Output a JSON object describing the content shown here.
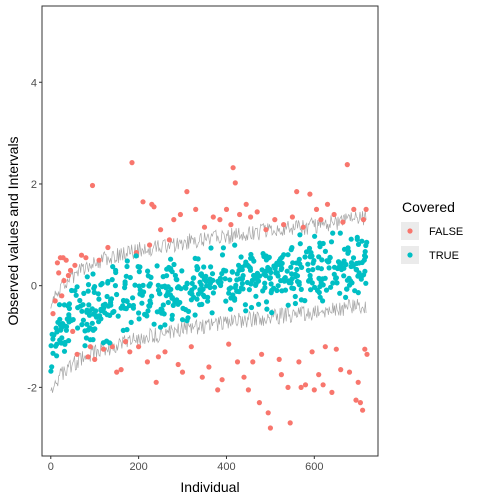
{
  "chart_data": {
    "type": "scatter",
    "xlabel": "Individual",
    "ylabel": "Observed values and Intervals",
    "xlim": [
      -20,
      745
    ],
    "ylim": [
      -3.35,
      5.5
    ],
    "x_ticks": [
      0,
      200,
      400,
      600
    ],
    "y_ticks": [
      -2,
      0,
      2,
      4
    ],
    "grid": false,
    "n_individuals": 720,
    "interval": {
      "color": "#a6a6a6",
      "lower_anchors": [
        [
          0,
          -2.0
        ],
        [
          40,
          -1.6
        ],
        [
          100,
          -1.3
        ],
        [
          200,
          -1.05
        ],
        [
          300,
          -0.85
        ],
        [
          400,
          -0.72
        ],
        [
          500,
          -0.62
        ],
        [
          600,
          -0.52
        ],
        [
          720,
          -0.38
        ]
      ],
      "upper_anchors": [
        [
          0,
          -0.35
        ],
        [
          40,
          0.15
        ],
        [
          100,
          0.45
        ],
        [
          200,
          0.7
        ],
        [
          300,
          0.85
        ],
        [
          400,
          0.97
        ],
        [
          500,
          1.08
        ],
        [
          600,
          1.18
        ],
        [
          720,
          1.35
        ]
      ]
    },
    "legend": {
      "title": "Covered",
      "position": "right",
      "entries": [
        {
          "label": "FALSE",
          "color": "#f8766d"
        },
        {
          "label": "TRUE",
          "color": "#00bfc4"
        }
      ]
    },
    "series": [
      {
        "name": "FALSE",
        "color": "#f8766d",
        "points": [
          [
            5,
            -0.55
          ],
          [
            10,
            -0.3
          ],
          [
            15,
            0.45
          ],
          [
            18,
            0.25
          ],
          [
            22,
            0.55
          ],
          [
            25,
            -0.2
          ],
          [
            28,
            0.55
          ],
          [
            30,
            0.1
          ],
          [
            35,
            0.5
          ],
          [
            40,
            0.2
          ],
          [
            45,
            0.3
          ],
          [
            50,
            -0.9
          ],
          [
            55,
            0.4
          ],
          [
            60,
            -1.35
          ],
          [
            70,
            0.6
          ],
          [
            80,
            0.55
          ],
          [
            85,
            -1.4
          ],
          [
            90,
            -1.2
          ],
          [
            95,
            1.97
          ],
          [
            100,
            -1.45
          ],
          [
            110,
            0.5
          ],
          [
            120,
            -1.25
          ],
          [
            130,
            0.75
          ],
          [
            140,
            -1.2
          ],
          [
            150,
            -1.7
          ],
          [
            160,
            -1.65
          ],
          [
            170,
            -1.1
          ],
          [
            180,
            -1.3
          ],
          [
            185,
            2.42
          ],
          [
            195,
            0.65
          ],
          [
            200,
            -1.2
          ],
          [
            210,
            1.65
          ],
          [
            220,
            -1.5
          ],
          [
            225,
            0.8
          ],
          [
            230,
            1.6
          ],
          [
            235,
            1.55
          ],
          [
            240,
            -1.9
          ],
          [
            245,
            -1.4
          ],
          [
            250,
            1.1
          ],
          [
            260,
            -1.3
          ],
          [
            270,
            0.9
          ],
          [
            280,
            1.3
          ],
          [
            290,
            -1.55
          ],
          [
            295,
            1.4
          ],
          [
            300,
            -1.7
          ],
          [
            310,
            1.85
          ],
          [
            320,
            -1.2
          ],
          [
            330,
            1.5
          ],
          [
            345,
            -1.8
          ],
          [
            350,
            1.15
          ],
          [
            360,
            -1.6
          ],
          [
            370,
            1.35
          ],
          [
            380,
            -2.05
          ],
          [
            385,
            1.3
          ],
          [
            390,
            -1.85
          ],
          [
            400,
            1.5
          ],
          [
            405,
            -1.15
          ],
          [
            410,
            1.2
          ],
          [
            415,
            2.32
          ],
          [
            420,
            2.02
          ],
          [
            425,
            -1.5
          ],
          [
            430,
            1.4
          ],
          [
            440,
            -1.8
          ],
          [
            445,
            1.6
          ],
          [
            450,
            -2.05
          ],
          [
            455,
            1.35
          ],
          [
            460,
            -1.5
          ],
          [
            470,
            1.45
          ],
          [
            475,
            -2.3
          ],
          [
            480,
            -1.35
          ],
          [
            490,
            1.1
          ],
          [
            495,
            -2.5
          ],
          [
            500,
            -2.8
          ],
          [
            510,
            1.3
          ],
          [
            520,
            -1.45
          ],
          [
            525,
            -1.75
          ],
          [
            530,
            1.2
          ],
          [
            540,
            -2.0
          ],
          [
            545,
            -2.7
          ],
          [
            550,
            1.35
          ],
          [
            560,
            1.85
          ],
          [
            565,
            -1.5
          ],
          [
            570,
            -2.0
          ],
          [
            575,
            1.15
          ],
          [
            580,
            -1.95
          ],
          [
            590,
            1.8
          ],
          [
            595,
            -1.3
          ],
          [
            600,
            -2.05
          ],
          [
            605,
            1.5
          ],
          [
            610,
            -1.75
          ],
          [
            615,
            1.3
          ],
          [
            620,
            -1.95
          ],
          [
            625,
            -1.2
          ],
          [
            630,
            1.6
          ],
          [
            640,
            -2.1
          ],
          [
            645,
            1.4
          ],
          [
            650,
            -1.25
          ],
          [
            660,
            -1.65
          ],
          [
            665,
            1.25
          ],
          [
            675,
            2.38
          ],
          [
            680,
            -1.7
          ],
          [
            690,
            1.5
          ],
          [
            695,
            -2.25
          ],
          [
            700,
            -1.9
          ],
          [
            705,
            -2.3
          ],
          [
            710,
            -2.45
          ],
          [
            712,
            1.3
          ],
          [
            715,
            -1.25
          ],
          [
            718,
            1.5
          ],
          [
            720,
            -1.35
          ]
        ]
      },
      {
        "name": "TRUE",
        "color": "#00bfc4",
        "generated": {
          "count": 540,
          "x_range": [
            0,
            720
          ],
          "seed": 7,
          "margin": 0.06
        }
      }
    ]
  }
}
